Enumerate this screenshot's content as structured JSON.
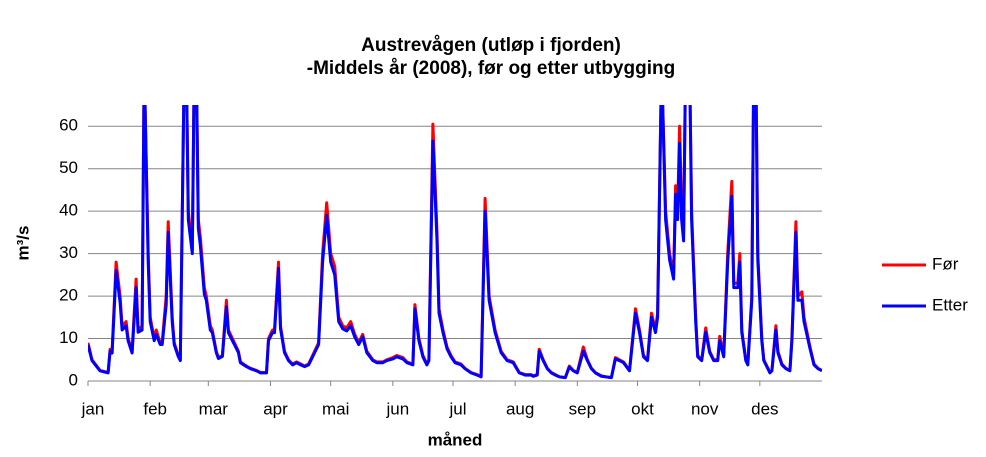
{
  "chart_data": {
    "type": "line",
    "title": "Austrevågen (utløp i fjorden)",
    "subtitle": "-Middels år (2008), før og etter utbygging",
    "xlabel": "måned",
    "ylabel": "m³/s",
    "x": [
      1,
      3,
      7,
      11,
      12,
      13,
      15,
      17,
      18,
      20,
      21,
      23,
      25,
      26,
      28,
      29,
      31,
      32,
      34,
      35,
      37,
      38,
      40,
      41,
      43,
      44,
      46,
      47,
      49,
      50,
      51,
      53,
      54,
      55,
      56,
      57,
      59,
      60,
      62,
      63,
      65,
      66,
      68,
      70,
      71,
      73,
      74,
      76,
      77,
      80,
      82,
      85,
      87,
      90,
      91,
      93,
      94,
      96,
      97,
      99,
      101,
      103,
      105,
      107,
      109,
      111,
      113,
      116,
      118,
      120,
      122,
      124,
      126,
      128,
      130,
      132,
      134,
      136,
      138,
      140,
      143,
      145,
      148,
      150,
      153,
      155,
      158,
      160,
      163,
      164,
      166,
      168,
      170,
      171,
      173,
      175,
      176,
      178,
      180,
      182,
      184,
      187,
      189,
      192,
      195,
      197,
      199,
      201,
      204,
      207,
      210,
      213,
      216,
      219,
      222,
      223,
      225,
      226,
      228,
      230,
      232,
      234,
      236,
      239,
      241,
      243,
      245,
      248,
      250,
      252,
      254,
      257,
      259,
      262,
      264,
      266,
      268,
      271,
      274,
      276,
      278,
      280,
      282,
      284,
      285,
      287,
      289,
      291,
      293,
      294,
      295,
      296,
      297,
      298,
      299,
      301,
      302,
      304,
      305,
      307,
      309,
      311,
      313,
      315,
      316,
      318,
      320,
      322,
      323,
      325,
      326,
      327,
      329,
      330,
      332,
      333,
      334,
      335,
      337,
      338,
      340,
      341,
      342,
      344,
      345,
      347,
      349,
      351,
      352,
      354,
      355,
      357,
      358,
      361,
      363,
      365,
      367
    ],
    "series": [
      {
        "name": "Før",
        "color": "#ff0000",
        "values": [
          9,
          5,
          2.5,
          2,
          7.5,
          7,
          28,
          20,
          13,
          14,
          10,
          7,
          24,
          12,
          13,
          75,
          30,
          15,
          10,
          12,
          9,
          9,
          20,
          37.5,
          15,
          9,
          6,
          5,
          75,
          75,
          40,
          31,
          75,
          75,
          38,
          34,
          22,
          20,
          13,
          12,
          7,
          5.5,
          6,
          19,
          12,
          10,
          9,
          7,
          4.5,
          3.5,
          3,
          2.5,
          2,
          2,
          10,
          12,
          12,
          28,
          13,
          7,
          5,
          4,
          4.5,
          4,
          3.5,
          4,
          6,
          9,
          30,
          42,
          30,
          27,
          15,
          13,
          12.5,
          14,
          11,
          9,
          11,
          7,
          5,
          4.5,
          4.5,
          5,
          5.5,
          6,
          5.5,
          4.5,
          4,
          18,
          10,
          6,
          4,
          5,
          60.5,
          35,
          17,
          12,
          8,
          6,
          4.5,
          4,
          3,
          2,
          1.5,
          1,
          43,
          20,
          12,
          7,
          5,
          4.5,
          2,
          1.5,
          1.5,
          1.2,
          1.5,
          7.5,
          5,
          3,
          2,
          1.5,
          1,
          0.8,
          3.5,
          2.5,
          2,
          8,
          5,
          3,
          2,
          1.2,
          1,
          0.8,
          5.5,
          5,
          4.5,
          2.5,
          17,
          12,
          6,
          5,
          16,
          12,
          16,
          75,
          40,
          30,
          25,
          46,
          40,
          60,
          40,
          35,
          75,
          75,
          40,
          15,
          6,
          5,
          12.5,
          7,
          5,
          5,
          10.5,
          6,
          30,
          47,
          23,
          23,
          30,
          12,
          5,
          4,
          20,
          75,
          75,
          30,
          10,
          5,
          3,
          2,
          2.5,
          13,
          7,
          4,
          3,
          2.5,
          10,
          37.5,
          20,
          21,
          15,
          8,
          4,
          3,
          2.5
        ]
      },
      {
        "name": "Etter",
        "color": "#0000ff",
        "values": [
          8.5,
          4.8,
          2.4,
          1.9,
          7,
          6.6,
          26,
          18.5,
          12,
          13,
          9.5,
          6.6,
          22,
          11.5,
          12,
          75,
          28,
          14,
          9.5,
          11,
          8.6,
          8.6,
          18,
          35,
          14,
          8.6,
          5.8,
          4.8,
          75,
          75,
          38,
          30,
          75,
          75,
          36,
          32,
          20.5,
          19,
          12,
          11.4,
          6.7,
          5.3,
          5.8,
          17.5,
          11.4,
          9.5,
          8.6,
          6.7,
          4.3,
          3.4,
          2.9,
          2.4,
          1.9,
          1.9,
          9.5,
          11.4,
          11.4,
          26.5,
          12.3,
          6.7,
          4.8,
          3.8,
          4.3,
          3.8,
          3.4,
          3.8,
          5.7,
          8.6,
          28,
          39,
          28,
          25,
          14,
          12.3,
          11.8,
          13,
          10.4,
          8.6,
          10.4,
          6.7,
          4.8,
          4.3,
          4.3,
          4.8,
          5.2,
          5.7,
          5.2,
          4.3,
          3.8,
          17,
          9.5,
          5.7,
          3.8,
          4.8,
          56.5,
          33,
          16,
          11.4,
          7.6,
          5.7,
          4.3,
          3.8,
          2.9,
          1.9,
          1.4,
          1,
          40,
          19,
          11.4,
          6.7,
          4.8,
          4.3,
          1.9,
          1.4,
          1.4,
          1.1,
          1.4,
          7,
          4.8,
          2.9,
          1.9,
          1.4,
          1,
          0.8,
          3.3,
          2.4,
          1.9,
          7,
          4.8,
          2.9,
          1.9,
          1.1,
          1,
          0.8,
          5.2,
          4.8,
          4.3,
          2.4,
          16,
          11.4,
          5.7,
          4.8,
          15,
          11.4,
          15,
          75,
          38,
          28.5,
          24,
          44,
          38,
          56,
          38,
          33,
          75,
          75,
          38,
          14,
          5.7,
          4.8,
          11.5,
          6.7,
          4.8,
          4.8,
          9.5,
          5.7,
          28,
          43.5,
          22,
          22,
          28,
          11.4,
          4.8,
          3.8,
          19,
          75,
          75,
          28.5,
          9.5,
          4.8,
          2.9,
          1.9,
          2.4,
          12,
          6.7,
          3.8,
          2.9,
          2.4,
          9.5,
          35,
          19,
          19,
          14,
          7.6,
          3.8,
          2.9,
          2.4
        ]
      }
    ],
    "xlim": [
      1,
      367
    ],
    "xticks": [
      {
        "value": 1,
        "label": "jan"
      },
      {
        "value": 32,
        "label": "feb"
      },
      {
        "value": 61,
        "label": "mar"
      },
      {
        "value": 92,
        "label": "apr"
      },
      {
        "value": 122,
        "label": "mai"
      },
      {
        "value": 153,
        "label": "jun"
      },
      {
        "value": 183,
        "label": "jul"
      },
      {
        "value": 214,
        "label": "aug"
      },
      {
        "value": 245,
        "label": "sep"
      },
      {
        "value": 275,
        "label": "okt"
      },
      {
        "value": 306,
        "label": "nov"
      },
      {
        "value": 336,
        "label": "des"
      }
    ],
    "ylim": [
      0,
      65
    ],
    "yticks": [
      0,
      10,
      20,
      30,
      40,
      50,
      60
    ],
    "grid": true,
    "legend": "right"
  }
}
